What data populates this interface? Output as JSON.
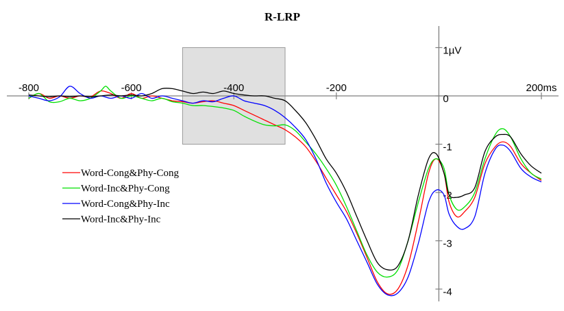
{
  "chart_data": {
    "type": "line",
    "title": "R-LRP",
    "xlabel": "",
    "ylabel": "",
    "xlim": [
      -800,
      200
    ],
    "ylim": [
      -4.35,
      1.55
    ],
    "x_ticks": [
      {
        "value": -800,
        "label": "-800"
      },
      {
        "value": -600,
        "label": "-600"
      },
      {
        "value": -400,
        "label": "-400"
      },
      {
        "value": -200,
        "label": "-200"
      },
      {
        "value": 200,
        "label": "200ms"
      }
    ],
    "y_ticks": [
      {
        "value": 1,
        "label": "1µV"
      },
      {
        "value": 0,
        "label": "0"
      },
      {
        "value": -1,
        "label": "-1"
      },
      {
        "value": -2,
        "label": "-2"
      },
      {
        "value": -3,
        "label": "-3"
      },
      {
        "value": -4,
        "label": "-4"
      }
    ],
    "highlight_window": {
      "x": [
        -500,
        -300
      ],
      "y": [
        -1.0,
        1.0
      ],
      "color": "#e0e0e0"
    },
    "legend_position": "left",
    "series": [
      {
        "name": "Word-Cong&Phy-Cong",
        "color": "#ff0000",
        "points": [
          [
            -800,
            -0.05
          ],
          [
            -780,
            0.05
          ],
          [
            -760,
            -0.05
          ],
          [
            -740,
            0.0
          ],
          [
            -720,
            -0.05
          ],
          [
            -700,
            0.0
          ],
          [
            -680,
            -0.02
          ],
          [
            -660,
            0.1
          ],
          [
            -640,
            0.05
          ],
          [
            -620,
            -0.05
          ],
          [
            -600,
            0.05
          ],
          [
            -580,
            -0.05
          ],
          [
            -560,
            0.0
          ],
          [
            -540,
            -0.05
          ],
          [
            -520,
            -0.1
          ],
          [
            -500,
            -0.12
          ],
          [
            -480,
            -0.15
          ],
          [
            -460,
            -0.12
          ],
          [
            -440,
            -0.1
          ],
          [
            -420,
            -0.15
          ],
          [
            -400,
            -0.2
          ],
          [
            -380,
            -0.3
          ],
          [
            -360,
            -0.4
          ],
          [
            -340,
            -0.5
          ],
          [
            -320,
            -0.6
          ],
          [
            -300,
            -0.7
          ],
          [
            -280,
            -0.85
          ],
          [
            -260,
            -1.05
          ],
          [
            -240,
            -1.35
          ],
          [
            -220,
            -1.7
          ],
          [
            -200,
            -2.05
          ],
          [
            -180,
            -2.4
          ],
          [
            -160,
            -2.85
          ],
          [
            -140,
            -3.35
          ],
          [
            -120,
            -3.85
          ],
          [
            -100,
            -4.1
          ],
          [
            -80,
            -4.0
          ],
          [
            -60,
            -3.5
          ],
          [
            -40,
            -2.6
          ],
          [
            -20,
            -1.6
          ],
          [
            -5,
            -1.3
          ],
          [
            10,
            -1.6
          ],
          [
            20,
            -2.2
          ],
          [
            35,
            -2.5
          ],
          [
            50,
            -2.4
          ],
          [
            70,
            -2.1
          ],
          [
            90,
            -1.4
          ],
          [
            110,
            -1.05
          ],
          [
            125,
            -0.95
          ],
          [
            140,
            -1.05
          ],
          [
            160,
            -1.4
          ],
          [
            180,
            -1.6
          ],
          [
            200,
            -1.75
          ]
        ]
      },
      {
        "name": "Word-Inc&Phy-Cong",
        "color": "#00e000",
        "points": [
          [
            -800,
            -0.05
          ],
          [
            -780,
            0.05
          ],
          [
            -760,
            -0.12
          ],
          [
            -740,
            -0.12
          ],
          [
            -720,
            -0.05
          ],
          [
            -700,
            -0.1
          ],
          [
            -680,
            -0.05
          ],
          [
            -660,
            0.1
          ],
          [
            -650,
            0.2
          ],
          [
            -640,
            0.1
          ],
          [
            -620,
            -0.05
          ],
          [
            -600,
            0.0
          ],
          [
            -580,
            -0.05
          ],
          [
            -560,
            -0.1
          ],
          [
            -540,
            -0.05
          ],
          [
            -520,
            -0.12
          ],
          [
            -500,
            -0.15
          ],
          [
            -480,
            -0.2
          ],
          [
            -460,
            -0.2
          ],
          [
            -440,
            -0.22
          ],
          [
            -420,
            -0.25
          ],
          [
            -400,
            -0.3
          ],
          [
            -380,
            -0.42
          ],
          [
            -360,
            -0.52
          ],
          [
            -340,
            -0.6
          ],
          [
            -320,
            -0.62
          ],
          [
            -300,
            -0.6
          ],
          [
            -280,
            -0.72
          ],
          [
            -260,
            -0.95
          ],
          [
            -240,
            -1.2
          ],
          [
            -220,
            -1.5
          ],
          [
            -200,
            -1.85
          ],
          [
            -180,
            -2.3
          ],
          [
            -160,
            -2.8
          ],
          [
            -140,
            -3.3
          ],
          [
            -120,
            -3.65
          ],
          [
            -100,
            -3.75
          ],
          [
            -80,
            -3.6
          ],
          [
            -60,
            -3.0
          ],
          [
            -40,
            -2.2
          ],
          [
            -20,
            -1.5
          ],
          [
            -5,
            -1.3
          ],
          [
            10,
            -1.5
          ],
          [
            20,
            -2.05
          ],
          [
            35,
            -2.35
          ],
          [
            50,
            -2.3
          ],
          [
            70,
            -2.0
          ],
          [
            90,
            -1.3
          ],
          [
            110,
            -0.8
          ],
          [
            125,
            -0.68
          ],
          [
            140,
            -0.85
          ],
          [
            160,
            -1.3
          ],
          [
            180,
            -1.6
          ],
          [
            200,
            -1.72
          ]
        ]
      },
      {
        "name": "Word-Cong&Phy-Inc",
        "color": "#0000ff",
        "points": [
          [
            -800,
            0.0
          ],
          [
            -780,
            -0.05
          ],
          [
            -760,
            -0.1
          ],
          [
            -740,
            -0.02
          ],
          [
            -720,
            0.2
          ],
          [
            -700,
            0.05
          ],
          [
            -680,
            -0.05
          ],
          [
            -660,
            0.0
          ],
          [
            -640,
            -0.05
          ],
          [
            -620,
            0.0
          ],
          [
            -600,
            -0.05
          ],
          [
            -580,
            0.05
          ],
          [
            -560,
            -0.05
          ],
          [
            -540,
            0.0
          ],
          [
            -520,
            -0.05
          ],
          [
            -500,
            -0.1
          ],
          [
            -480,
            -0.15
          ],
          [
            -460,
            -0.1
          ],
          [
            -440,
            -0.12
          ],
          [
            -420,
            -0.05
          ],
          [
            -400,
            0.0
          ],
          [
            -380,
            -0.1
          ],
          [
            -360,
            -0.15
          ],
          [
            -340,
            -0.2
          ],
          [
            -320,
            -0.3
          ],
          [
            -300,
            -0.45
          ],
          [
            -280,
            -0.65
          ],
          [
            -260,
            -0.9
          ],
          [
            -240,
            -1.3
          ],
          [
            -220,
            -1.8
          ],
          [
            -200,
            -2.2
          ],
          [
            -180,
            -2.55
          ],
          [
            -160,
            -3.0
          ],
          [
            -140,
            -3.45
          ],
          [
            -120,
            -3.9
          ],
          [
            -100,
            -4.12
          ],
          [
            -80,
            -4.08
          ],
          [
            -60,
            -3.75
          ],
          [
            -40,
            -3.05
          ],
          [
            -20,
            -2.2
          ],
          [
            -5,
            -1.95
          ],
          [
            10,
            -2.05
          ],
          [
            20,
            -2.45
          ],
          [
            35,
            -2.7
          ],
          [
            50,
            -2.75
          ],
          [
            70,
            -2.5
          ],
          [
            90,
            -1.6
          ],
          [
            110,
            -1.1
          ],
          [
            125,
            -1.02
          ],
          [
            140,
            -1.15
          ],
          [
            160,
            -1.5
          ],
          [
            180,
            -1.68
          ],
          [
            200,
            -1.78
          ]
        ]
      },
      {
        "name": "Word-Inc&Phy-Inc",
        "color": "#000000",
        "points": [
          [
            -800,
            0.02
          ],
          [
            -780,
            0.0
          ],
          [
            -760,
            -0.02
          ],
          [
            -740,
            0.0
          ],
          [
            -720,
            -0.02
          ],
          [
            -700,
            0.0
          ],
          [
            -680,
            -0.02
          ],
          [
            -660,
            0.0
          ],
          [
            -640,
            0.02
          ],
          [
            -620,
            0.0
          ],
          [
            -600,
            0.02
          ],
          [
            -580,
            0.0
          ],
          [
            -560,
            0.05
          ],
          [
            -540,
            0.15
          ],
          [
            -520,
            0.15
          ],
          [
            -500,
            0.1
          ],
          [
            -480,
            0.05
          ],
          [
            -460,
            0.08
          ],
          [
            -440,
            0.05
          ],
          [
            -420,
            0.1
          ],
          [
            -400,
            0.05
          ],
          [
            -380,
            0.02
          ],
          [
            -360,
            0.0
          ],
          [
            -340,
            0.0
          ],
          [
            -320,
            -0.05
          ],
          [
            -300,
            -0.1
          ],
          [
            -280,
            -0.3
          ],
          [
            -260,
            -0.55
          ],
          [
            -240,
            -0.9
          ],
          [
            -220,
            -1.3
          ],
          [
            -200,
            -1.6
          ],
          [
            -180,
            -2.0
          ],
          [
            -160,
            -2.5
          ],
          [
            -140,
            -3.0
          ],
          [
            -120,
            -3.45
          ],
          [
            -100,
            -3.6
          ],
          [
            -80,
            -3.52
          ],
          [
            -60,
            -3.0
          ],
          [
            -40,
            -2.05
          ],
          [
            -20,
            -1.3
          ],
          [
            -5,
            -1.2
          ],
          [
            10,
            -1.6
          ],
          [
            20,
            -2.05
          ],
          [
            35,
            -2.1
          ],
          [
            50,
            -2.05
          ],
          [
            70,
            -1.9
          ],
          [
            90,
            -1.15
          ],
          [
            110,
            -0.85
          ],
          [
            125,
            -0.8
          ],
          [
            140,
            -0.85
          ],
          [
            160,
            -1.2
          ],
          [
            180,
            -1.45
          ],
          [
            200,
            -1.6
          ]
        ]
      }
    ]
  }
}
